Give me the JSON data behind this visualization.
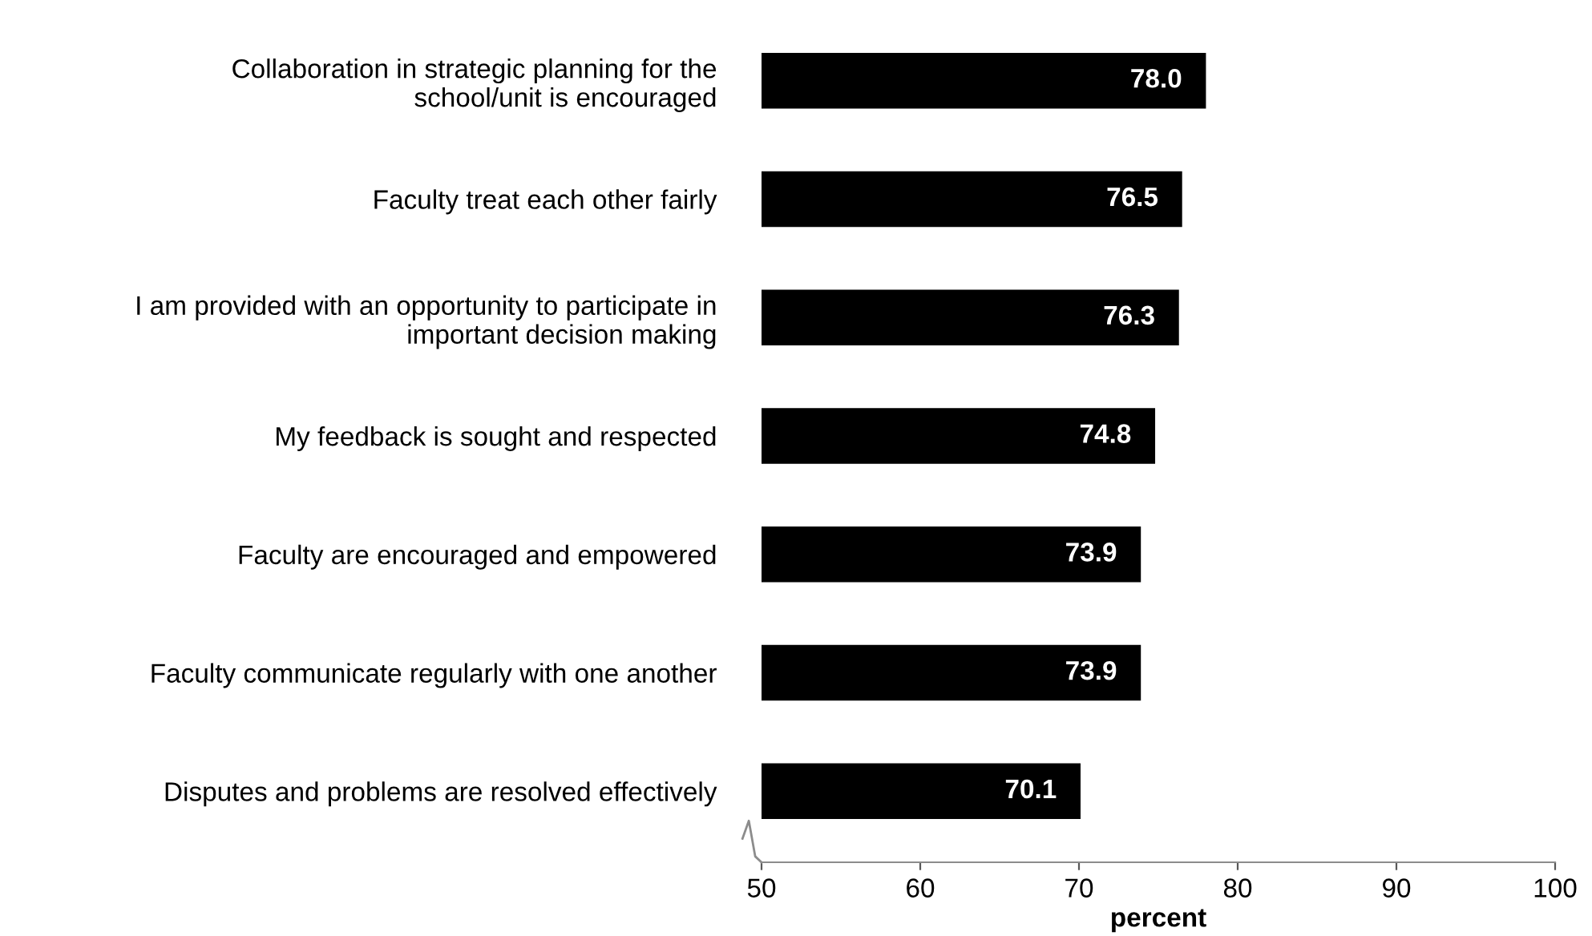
{
  "chart_data": {
    "type": "bar",
    "orientation": "horizontal",
    "xlabel": "percent",
    "categories": [
      "Collaboration in strategic planning for the\nschool/unit is encouraged",
      "Faculty treat each other fairly",
      "I am provided with an opportunity to participate in\nimportant decision making",
      "My feedback is sought and respected",
      "Faculty are encouraged and empowered",
      "Faculty communicate regularly with one another",
      "Disputes and problems are resolved effectively"
    ],
    "values": [
      78.0,
      76.5,
      76.3,
      74.8,
      73.9,
      73.9,
      70.1
    ],
    "value_labels": [
      "78.0",
      "76.5",
      "76.3",
      "74.8",
      "73.9",
      "73.9",
      "70.1"
    ],
    "color": "#000000",
    "xlim": [
      50,
      100
    ],
    "xticks": [
      50,
      60,
      70,
      80,
      90,
      100
    ],
    "grid": false,
    "legend": false
  }
}
